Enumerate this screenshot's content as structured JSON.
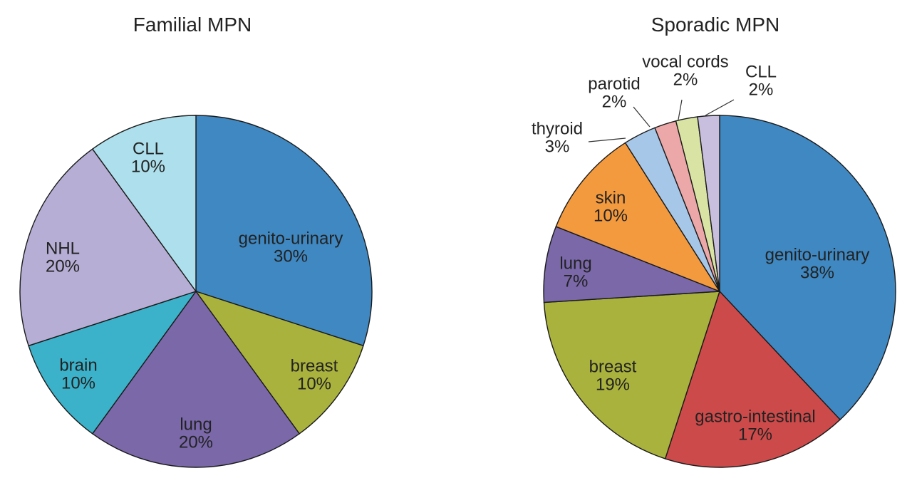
{
  "chart_data": [
    {
      "type": "pie",
      "title": "Familial MPN",
      "start_angle_deg": 0,
      "direction": "clockwise",
      "slices": [
        {
          "label": "genito-urinary",
          "value": 30,
          "value_label": "30%",
          "color": "#3f88c2"
        },
        {
          "label": "breast",
          "value": 10,
          "value_label": "10%",
          "color": "#a9b23c"
        },
        {
          "label": "lung",
          "value": 20,
          "value_label": "20%",
          "color": "#7a68a9"
        },
        {
          "label": "brain",
          "value": 10,
          "value_label": "10%",
          "color": "#3bb2c9"
        },
        {
          "label": "NHL",
          "value": 20,
          "value_label": "20%",
          "color": "#b6aed4"
        },
        {
          "label": "CLL",
          "value": 10,
          "value_label": "10%",
          "color": "#ade0ec"
        }
      ]
    },
    {
      "type": "pie",
      "title": "Sporadic MPN",
      "start_angle_deg": 0,
      "direction": "clockwise",
      "slices": [
        {
          "label": "genito-urinary",
          "value": 38,
          "value_label": "38%",
          "color": "#3f88c2"
        },
        {
          "label": "gastro-intestinal",
          "value": 17,
          "value_label": "17%",
          "color": "#cd4a4a"
        },
        {
          "label": "breast",
          "value": 19,
          "value_label": "19%",
          "color": "#a9b23c"
        },
        {
          "label": "lung",
          "value": 7,
          "value_label": "7%",
          "color": "#7a68a9"
        },
        {
          "label": "skin",
          "value": 10,
          "value_label": "10%",
          "color": "#f39a3e"
        },
        {
          "label": "thyroid",
          "value": 3,
          "value_label": "3%",
          "color": "#a7c7e8"
        },
        {
          "label": "parotid",
          "value": 2,
          "value_label": "2%",
          "color": "#eca8a8"
        },
        {
          "label": "vocal cords",
          "value": 2,
          "value_label": "2%",
          "color": "#d9e4a4"
        },
        {
          "label": "CLL",
          "value": 2,
          "value_label": "2%",
          "color": "#c8bedd"
        }
      ]
    }
  ]
}
